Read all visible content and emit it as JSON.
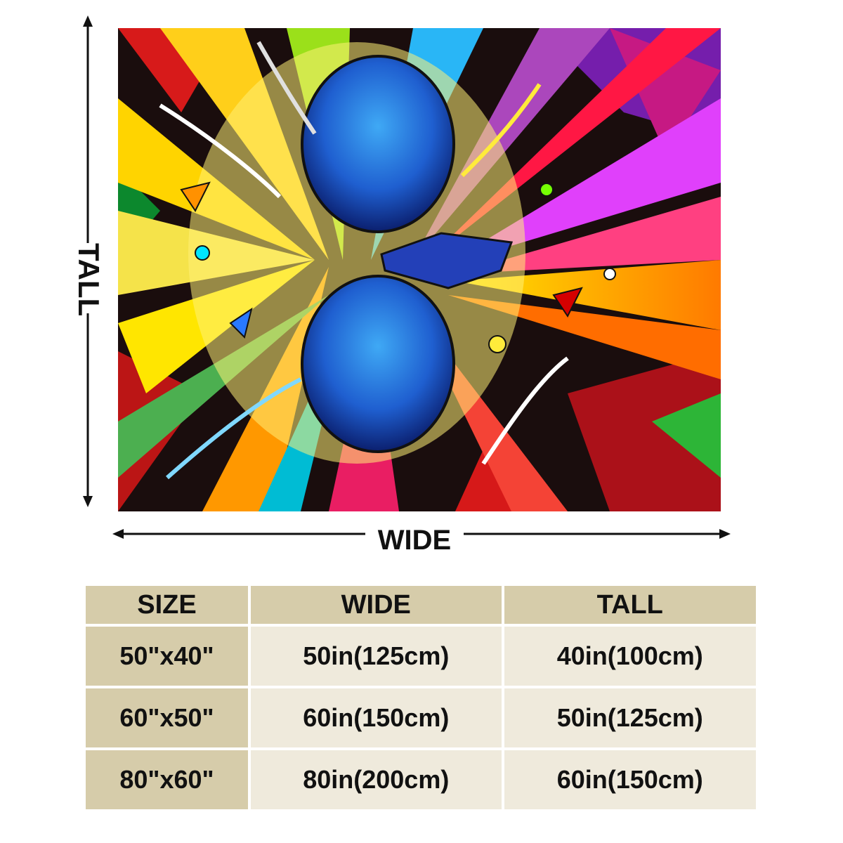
{
  "dimension_labels": {
    "tall": "TALL",
    "wide": "WIDE"
  },
  "colors": {
    "header_bg": "#d6ccaa",
    "cell_bg": "#efeadc",
    "text": "#111111"
  },
  "table": {
    "headers": [
      "SIZE",
      "WIDE",
      "TALL"
    ],
    "rows": [
      [
        "50\"x40\"",
        "50in(125cm)",
        "40in(100cm)"
      ],
      [
        "60\"x50\"",
        "60in(150cm)",
        "50in(125cm)"
      ],
      [
        "80\"x60\"",
        "80in(200cm)",
        "60in(150cm)"
      ]
    ]
  }
}
